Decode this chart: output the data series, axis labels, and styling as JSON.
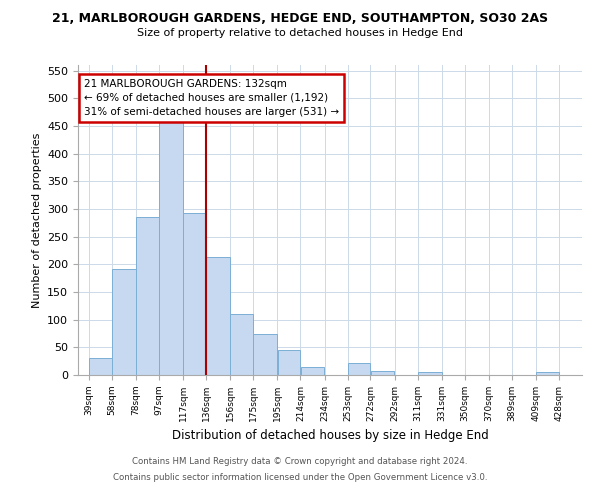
{
  "title1": "21, MARLBOROUGH GARDENS, HEDGE END, SOUTHAMPTON, SO30 2AS",
  "title2": "Size of property relative to detached houses in Hedge End",
  "xlabel": "Distribution of detached houses by size in Hedge End",
  "ylabel": "Number of detached properties",
  "bar_left_edges": [
    39,
    58,
    78,
    97,
    117,
    136,
    156,
    175,
    195,
    214,
    234,
    253,
    272,
    292,
    311,
    331,
    350,
    370,
    389,
    409
  ],
  "bar_heights": [
    30,
    192,
    285,
    458,
    292,
    213,
    110,
    74,
    46,
    14,
    0,
    22,
    8,
    0,
    5,
    0,
    0,
    0,
    0,
    5
  ],
  "bar_widths": [
    19,
    20,
    19,
    20,
    19,
    20,
    19,
    20,
    19,
    20,
    19,
    19,
    20,
    19,
    20,
    19,
    20,
    19,
    20,
    19
  ],
  "tick_labels": [
    "39sqm",
    "58sqm",
    "78sqm",
    "97sqm",
    "117sqm",
    "136sqm",
    "156sqm",
    "175sqm",
    "195sqm",
    "214sqm",
    "234sqm",
    "253sqm",
    "272sqm",
    "292sqm",
    "311sqm",
    "331sqm",
    "350sqm",
    "370sqm",
    "389sqm",
    "409sqm",
    "428sqm"
  ],
  "tick_positions": [
    39,
    58,
    78,
    97,
    117,
    136,
    156,
    175,
    195,
    214,
    234,
    253,
    272,
    292,
    311,
    331,
    350,
    370,
    389,
    409,
    428
  ],
  "bar_color": "#c6d9f0",
  "bar_edge_color": "#7bafd4",
  "vline_x": 136,
  "vline_color": "#aa0000",
  "ylim": [
    0,
    560
  ],
  "xlim": [
    30,
    447
  ],
  "annotation_title": "21 MARLBOROUGH GARDENS: 132sqm",
  "annotation_line1": "← 69% of detached houses are smaller (1,192)",
  "annotation_line2": "31% of semi-detached houses are larger (531) →",
  "annotation_box_color": "#ffffff",
  "annotation_box_edge": "#cc0000",
  "footnote1": "Contains HM Land Registry data © Crown copyright and database right 2024.",
  "footnote2": "Contains public sector information licensed under the Open Government Licence v3.0.",
  "yticks": [
    0,
    50,
    100,
    150,
    200,
    250,
    300,
    350,
    400,
    450,
    500,
    550
  ]
}
